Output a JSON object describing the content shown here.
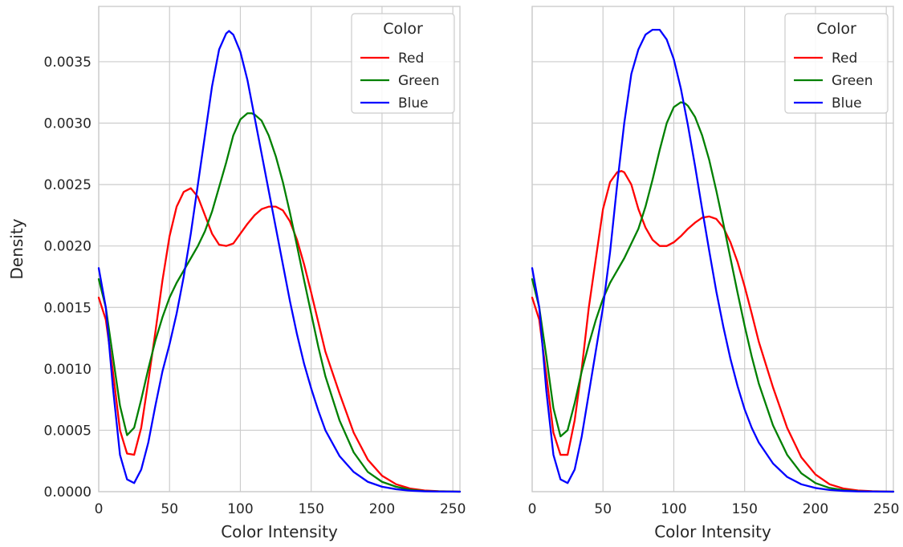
{
  "chart_data": [
    {
      "type": "line",
      "xlabel": "Color Intensity",
      "ylabel": "Density",
      "xlim": [
        0,
        255
      ],
      "ylim": [
        0,
        0.00395
      ],
      "xticks": [
        0,
        50,
        100,
        150,
        200,
        250
      ],
      "yticks": [
        "0.0000",
        "0.0005",
        "0.0010",
        "0.0015",
        "0.0020",
        "0.0025",
        "0.0030",
        "0.0035"
      ],
      "grid": true,
      "legend": {
        "title": "Color",
        "placement": "top-right"
      },
      "series": [
        {
          "name": "Red",
          "color": "#ff0000",
          "x": [
            0,
            5,
            10,
            15,
            20,
            25,
            30,
            35,
            40,
            45,
            50,
            55,
            60,
            65,
            70,
            75,
            80,
            85,
            90,
            95,
            100,
            105,
            110,
            115,
            120,
            125,
            130,
            135,
            140,
            145,
            150,
            155,
            160,
            170,
            180,
            190,
            200,
            210,
            220,
            230,
            240,
            255
          ],
          "y": [
            0.00158,
            0.0014,
            0.00098,
            0.0005,
            0.00031,
            0.0003,
            0.00052,
            0.0009,
            0.0013,
            0.00172,
            0.00208,
            0.00232,
            0.00244,
            0.00247,
            0.0024,
            0.00225,
            0.0021,
            0.00201,
            0.002,
            0.00202,
            0.0021,
            0.00218,
            0.00225,
            0.0023,
            0.00232,
            0.00232,
            0.00229,
            0.0022,
            0.00205,
            0.00185,
            0.00162,
            0.00138,
            0.00114,
            0.0008,
            0.00048,
            0.00026,
            0.00013,
            6e-05,
            2.5e-05,
            1e-05,
            4e-06,
            0.0
          ]
        },
        {
          "name": "Green",
          "color": "#008000",
          "x": [
            0,
            5,
            10,
            15,
            20,
            25,
            30,
            35,
            40,
            45,
            50,
            55,
            60,
            65,
            70,
            75,
            80,
            85,
            90,
            95,
            100,
            105,
            108,
            110,
            115,
            120,
            125,
            130,
            135,
            140,
            145,
            150,
            155,
            160,
            170,
            180,
            190,
            200,
            210,
            220,
            230,
            240,
            255
          ],
          "y": [
            0.00173,
            0.0015,
            0.0011,
            0.0007,
            0.00046,
            0.00052,
            0.00075,
            0.001,
            0.00123,
            0.00142,
            0.00158,
            0.0017,
            0.0018,
            0.0019,
            0.002,
            0.00212,
            0.00228,
            0.00248,
            0.00268,
            0.0029,
            0.00303,
            0.00308,
            0.00308,
            0.00307,
            0.00302,
            0.0029,
            0.00273,
            0.00252,
            0.00227,
            0.002,
            0.00172,
            0.00145,
            0.00118,
            0.00094,
            0.00058,
            0.00032,
            0.00016,
            8e-05,
            4e-05,
            1.5e-05,
            5e-06,
            2e-06,
            0.0
          ]
        },
        {
          "name": "Blue",
          "color": "#0000ff",
          "x": [
            0,
            5,
            10,
            15,
            20,
            25,
            30,
            35,
            40,
            45,
            50,
            55,
            60,
            65,
            70,
            75,
            80,
            85,
            90,
            92,
            95,
            100,
            105,
            110,
            115,
            120,
            125,
            130,
            135,
            140,
            145,
            150,
            155,
            160,
            170,
            180,
            190,
            200,
            210,
            220,
            230,
            240,
            255
          ],
          "y": [
            0.00182,
            0.0015,
            0.00085,
            0.0003,
            0.0001,
            7e-05,
            0.00018,
            0.0004,
            0.0007,
            0.00098,
            0.0012,
            0.00145,
            0.00175,
            0.0021,
            0.0025,
            0.0029,
            0.0033,
            0.0036,
            0.00373,
            0.00375,
            0.00372,
            0.00358,
            0.00335,
            0.00305,
            0.00275,
            0.00245,
            0.00215,
            0.00185,
            0.00155,
            0.00128,
            0.00104,
            0.00084,
            0.00066,
            0.0005,
            0.00029,
            0.00016,
            8e-05,
            4e-05,
            2e-05,
            8e-06,
            3e-06,
            1e-06,
            0.0
          ]
        }
      ]
    },
    {
      "type": "line",
      "xlabel": "Color Intensity",
      "ylabel": "",
      "xlim": [
        0,
        255
      ],
      "ylim": [
        0,
        0.00395
      ],
      "xticks": [
        0,
        50,
        100,
        150,
        200,
        250
      ],
      "yticks": [],
      "grid": true,
      "legend": {
        "title": "Color",
        "placement": "top-right"
      },
      "series": [
        {
          "name": "Red",
          "color": "#ff0000",
          "x": [
            0,
            5,
            10,
            15,
            20,
            25,
            30,
            35,
            40,
            45,
            50,
            55,
            60,
            63,
            65,
            70,
            75,
            80,
            85,
            90,
            95,
            100,
            105,
            110,
            115,
            120,
            125,
            130,
            135,
            140,
            145,
            150,
            155,
            160,
            170,
            180,
            190,
            200,
            210,
            220,
            230,
            240,
            255
          ],
          "y": [
            0.00158,
            0.0014,
            0.00095,
            0.00048,
            0.0003,
            0.0003,
            0.00058,
            0.001,
            0.0015,
            0.0019,
            0.0023,
            0.00252,
            0.0026,
            0.00261,
            0.0026,
            0.0025,
            0.0023,
            0.00215,
            0.00205,
            0.002,
            0.002,
            0.00203,
            0.00208,
            0.00214,
            0.00219,
            0.00223,
            0.00224,
            0.00222,
            0.00215,
            0.00203,
            0.00187,
            0.00167,
            0.00145,
            0.00122,
            0.00085,
            0.00052,
            0.00028,
            0.00014,
            6e-05,
            2.5e-05,
            1e-05,
            4e-06,
            0.0
          ]
        },
        {
          "name": "Green",
          "color": "#008000",
          "x": [
            0,
            5,
            10,
            15,
            20,
            25,
            30,
            35,
            40,
            45,
            50,
            55,
            60,
            65,
            70,
            75,
            80,
            85,
            90,
            95,
            100,
            105,
            108,
            110,
            115,
            120,
            125,
            130,
            135,
            140,
            145,
            150,
            155,
            160,
            170,
            180,
            190,
            200,
            210,
            220,
            230,
            240,
            255
          ],
          "y": [
            0.00173,
            0.0015,
            0.0011,
            0.00068,
            0.00045,
            0.0005,
            0.00072,
            0.00098,
            0.0012,
            0.0014,
            0.00157,
            0.0017,
            0.0018,
            0.0019,
            0.00202,
            0.00214,
            0.00232,
            0.00254,
            0.00278,
            0.003,
            0.00313,
            0.00317,
            0.00316,
            0.00314,
            0.00305,
            0.0029,
            0.0027,
            0.00245,
            0.00218,
            0.0019,
            0.00162,
            0.00135,
            0.0011,
            0.00088,
            0.00054,
            0.0003,
            0.00015,
            7e-05,
            3e-05,
            1.2e-05,
            4e-06,
            1e-06,
            0.0
          ]
        },
        {
          "name": "Blue",
          "color": "#0000ff",
          "x": [
            0,
            5,
            10,
            15,
            20,
            25,
            30,
            35,
            40,
            45,
            50,
            55,
            60,
            65,
            70,
            75,
            80,
            85,
            90,
            95,
            100,
            105,
            110,
            115,
            120,
            125,
            130,
            135,
            140,
            145,
            150,
            155,
            160,
            170,
            180,
            190,
            200,
            210,
            220,
            230,
            240,
            255
          ],
          "y": [
            0.00182,
            0.0015,
            0.00082,
            0.0003,
            0.0001,
            7e-05,
            0.00018,
            0.00045,
            0.0008,
            0.00115,
            0.0015,
            0.00195,
            0.0025,
            0.003,
            0.0034,
            0.0036,
            0.00372,
            0.00376,
            0.00376,
            0.00368,
            0.00352,
            0.00328,
            0.00298,
            0.00265,
            0.0023,
            0.00196,
            0.00163,
            0.00134,
            0.00108,
            0.00086,
            0.00067,
            0.00052,
            0.0004,
            0.00023,
            0.00012,
            6e-05,
            3e-05,
            1.4e-05,
            6e-06,
            2e-06,
            1e-06,
            0.0
          ]
        }
      ]
    }
  ]
}
